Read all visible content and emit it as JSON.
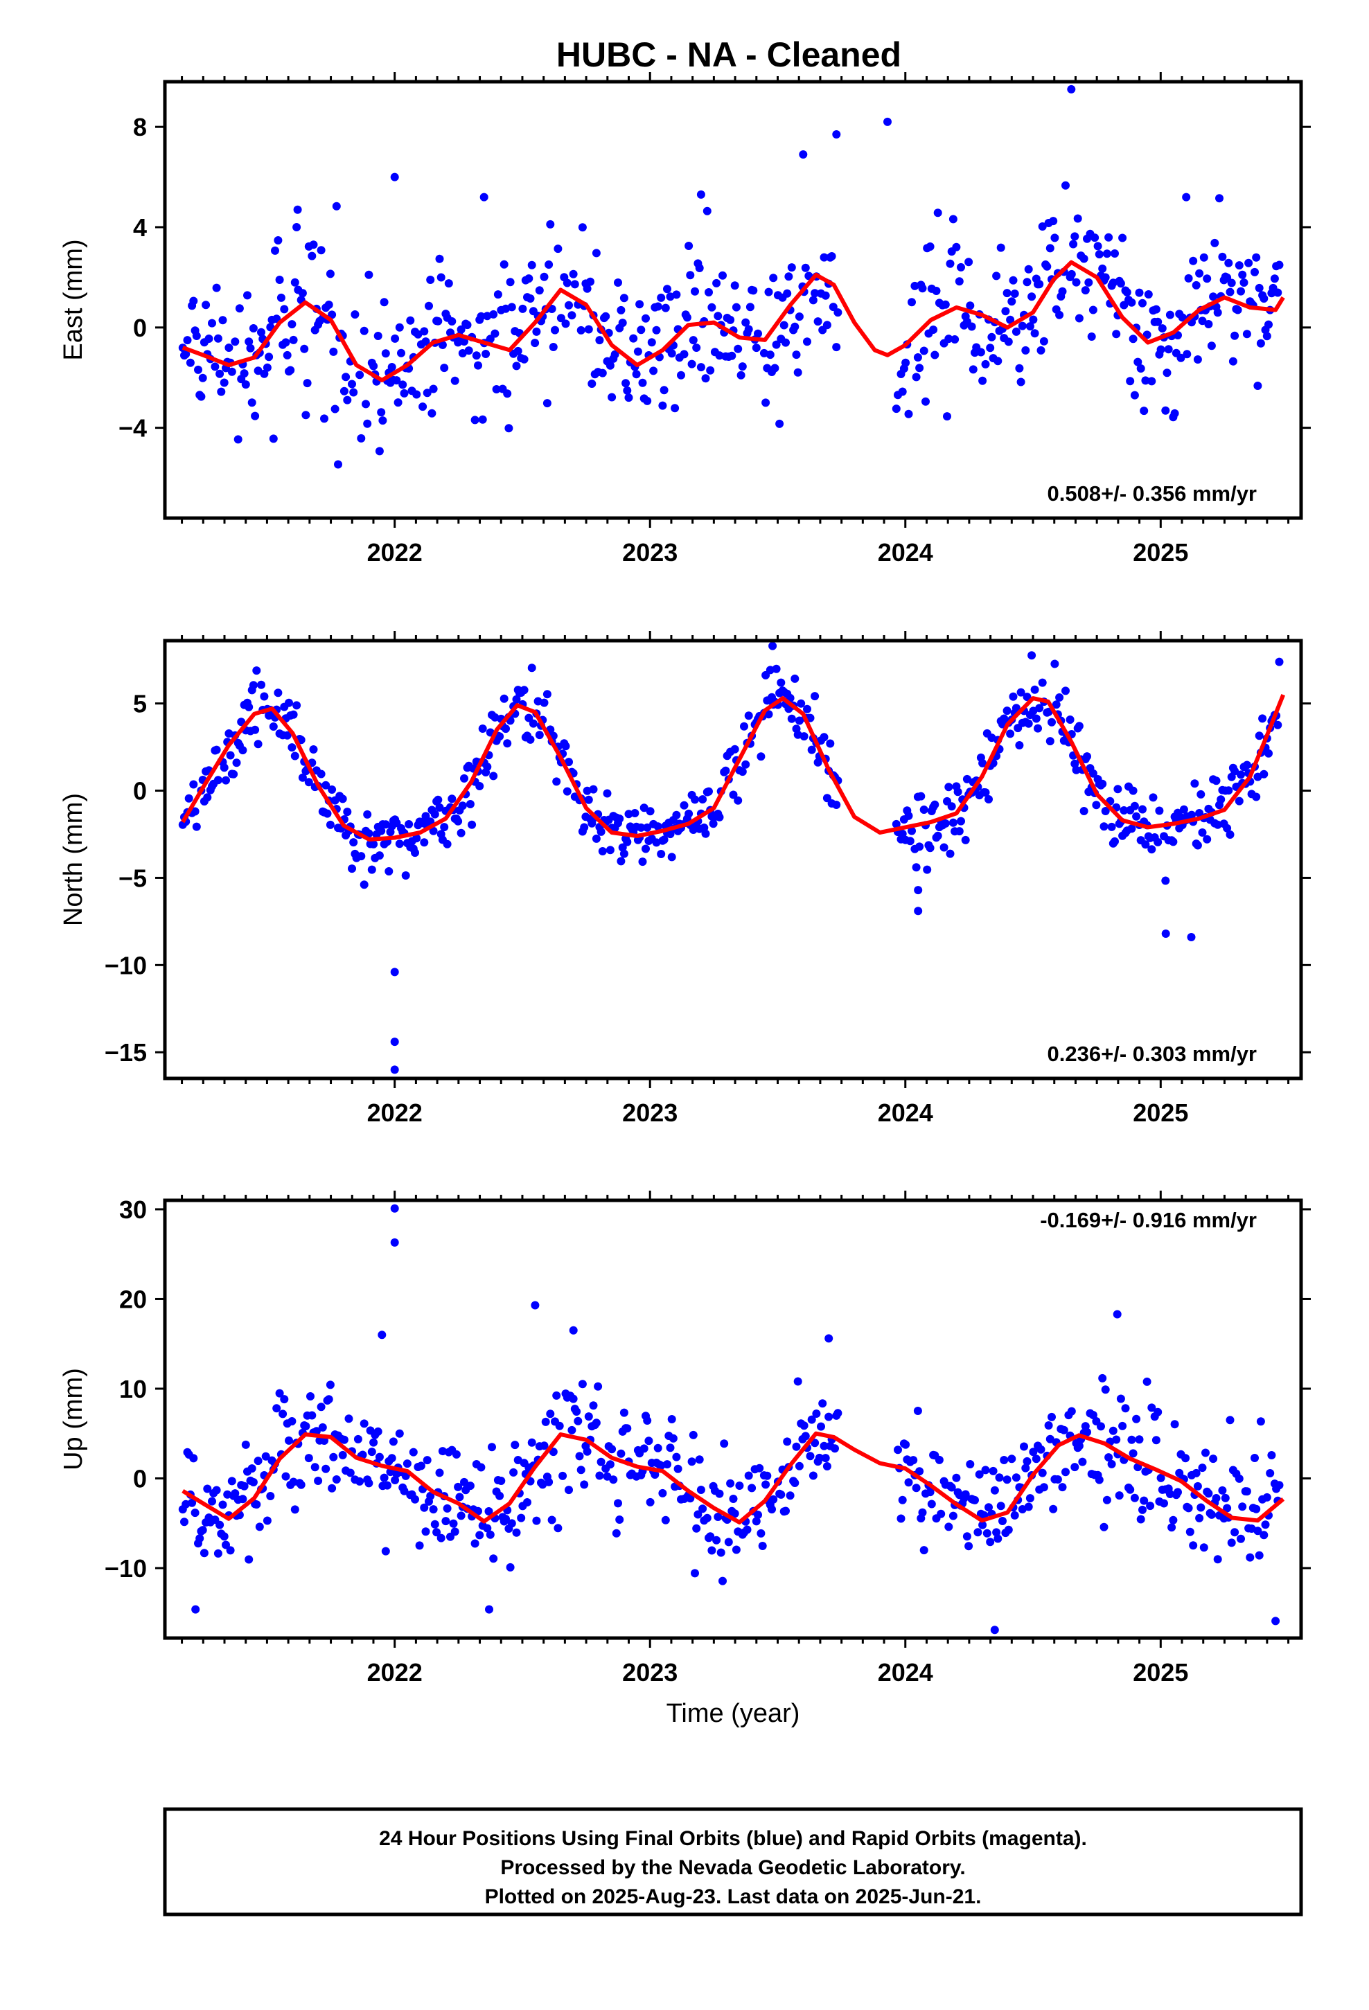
{
  "title": "HUBC  - NA - Cleaned",
  "colors": {
    "points": "#0000ff",
    "fit": "#ff0000",
    "frame": "#000000"
  },
  "xaxis_label": "Time (year)",
  "footer": {
    "line1": "24 Hour Positions Using Final Orbits (blue) and Rapid Orbits (magenta).",
    "line2": "Processed by the Nevada Geodetic Laboratory.",
    "line3": "Plotted on 2025-Aug-23. Last data on 2025-Jun-21."
  },
  "chart_data": [
    {
      "type": "scatter",
      "component": "east",
      "ylabel": "East (mm)",
      "rate_text": "0.508+/- 0.356 mm/yr",
      "xlim": [
        2021.1,
        2025.55
      ],
      "ylim": [
        -7.6,
        9.8
      ],
      "x_ticks": [
        2022,
        2023,
        2024,
        2025
      ],
      "x_tick_labels": [
        "2022",
        "2023",
        "2024",
        "2025"
      ],
      "y_ticks": [
        8,
        4,
        0,
        -4
      ],
      "y_tick_labels": [
        "8",
        "4",
        "0",
        "−4"
      ],
      "seasonal_model": {
        "offset": -0.4,
        "amp1": 1.3,
        "phase1": 0.62,
        "amp2": 0.4,
        "phase2": 0.15,
        "noise_sd": 1.5
      },
      "fit_points": [
        [
          2021.17,
          -0.8
        ],
        [
          2021.25,
          -1.1
        ],
        [
          2021.35,
          -1.5
        ],
        [
          2021.45,
          -1.2
        ],
        [
          2021.55,
          0.2
        ],
        [
          2021.65,
          1.0
        ],
        [
          2021.75,
          0.3
        ],
        [
          2021.85,
          -1.5
        ],
        [
          2021.95,
          -2.1
        ],
        [
          2022.05,
          -1.5
        ],
        [
          2022.15,
          -0.6
        ],
        [
          2022.25,
          -0.3
        ],
        [
          2022.35,
          -0.6
        ],
        [
          2022.45,
          -0.9
        ],
        [
          2022.55,
          0.2
        ],
        [
          2022.65,
          1.5
        ],
        [
          2022.75,
          0.9
        ],
        [
          2022.85,
          -0.7
        ],
        [
          2022.95,
          -1.5
        ],
        [
          2023.05,
          -0.9
        ],
        [
          2023.15,
          0.1
        ],
        [
          2023.25,
          0.2
        ],
        [
          2023.35,
          -0.4
        ],
        [
          2023.45,
          -0.5
        ],
        [
          2023.55,
          0.9
        ],
        [
          2023.65,
          2.1
        ],
        [
          2023.72,
          1.7
        ],
        [
          2023.8,
          0.2
        ],
        [
          2023.88,
          -0.9
        ],
        [
          2023.93,
          -1.1
        ],
        [
          2024.0,
          -0.7
        ],
        [
          2024.1,
          0.3
        ],
        [
          2024.2,
          0.8
        ],
        [
          2024.3,
          0.5
        ],
        [
          2024.4,
          0.0
        ],
        [
          2024.5,
          0.6
        ],
        [
          2024.58,
          1.9
        ],
        [
          2024.65,
          2.6
        ],
        [
          2024.75,
          2.0
        ],
        [
          2024.85,
          0.4
        ],
        [
          2024.95,
          -0.6
        ],
        [
          2025.05,
          -0.2
        ],
        [
          2025.15,
          0.7
        ],
        [
          2025.25,
          1.2
        ],
        [
          2025.35,
          0.8
        ],
        [
          2025.45,
          0.7
        ],
        [
          2025.48,
          1.2
        ]
      ],
      "outliers": [
        [
          2024.65,
          9.5
        ],
        [
          2023.93,
          8.2
        ],
        [
          2023.73,
          7.7
        ],
        [
          2023.6,
          6.9
        ],
        [
          2022.0,
          6.0
        ],
        [
          2022.35,
          5.2
        ],
        [
          2023.2,
          5.3
        ],
        [
          2025.1,
          5.2
        ],
        [
          2021.62,
          4.7
        ]
      ]
    },
    {
      "type": "scatter",
      "component": "north",
      "ylabel": "North (mm)",
      "rate_text": "0.236+/- 0.303 mm/yr",
      "xlim": [
        2021.1,
        2025.55
      ],
      "ylim": [
        -16.5,
        8.6
      ],
      "x_ticks": [
        2022,
        2023,
        2024,
        2025
      ],
      "x_tick_labels": [
        "2022",
        "2023",
        "2024",
        "2025"
      ],
      "y_ticks": [
        5,
        0,
        -5,
        -10,
        -15
      ],
      "y_tick_labels": [
        "5",
        "0",
        "−5",
        "−10",
        "−15"
      ],
      "seasonal_model": {
        "offset": 1.3,
        "amp1": 3.6,
        "phase1": 0.5,
        "amp2": 0.9,
        "phase2": 0.0,
        "noise_sd": 1.0
      },
      "fit_points": [
        [
          2021.17,
          -1.8
        ],
        [
          2021.25,
          0.2
        ],
        [
          2021.35,
          2.6
        ],
        [
          2021.45,
          4.4
        ],
        [
          2021.52,
          4.7
        ],
        [
          2021.6,
          3.3
        ],
        [
          2021.7,
          0.3
        ],
        [
          2021.8,
          -2.0
        ],
        [
          2021.9,
          -2.8
        ],
        [
          2022.0,
          -2.7
        ],
        [
          2022.1,
          -2.4
        ],
        [
          2022.2,
          -1.6
        ],
        [
          2022.3,
          0.5
        ],
        [
          2022.4,
          3.5
        ],
        [
          2022.48,
          4.9
        ],
        [
          2022.55,
          4.5
        ],
        [
          2022.65,
          1.9
        ],
        [
          2022.75,
          -1.0
        ],
        [
          2022.85,
          -2.4
        ],
        [
          2022.95,
          -2.6
        ],
        [
          2023.05,
          -2.3
        ],
        [
          2023.15,
          -1.9
        ],
        [
          2023.25,
          -1.0
        ],
        [
          2023.35,
          1.8
        ],
        [
          2023.45,
          4.6
        ],
        [
          2023.52,
          5.3
        ],
        [
          2023.6,
          4.4
        ],
        [
          2023.7,
          1.2
        ],
        [
          2023.8,
          -1.5
        ],
        [
          2023.9,
          -2.4
        ],
        [
          2024.0,
          -2.1
        ],
        [
          2024.1,
          -1.8
        ],
        [
          2024.2,
          -1.3
        ],
        [
          2024.3,
          0.8
        ],
        [
          2024.4,
          3.8
        ],
        [
          2024.5,
          5.3
        ],
        [
          2024.56,
          5.1
        ],
        [
          2024.65,
          2.8
        ],
        [
          2024.75,
          -0.2
        ],
        [
          2024.85,
          -1.7
        ],
        [
          2024.95,
          -2.1
        ],
        [
          2025.05,
          -1.9
        ],
        [
          2025.15,
          -1.6
        ],
        [
          2025.25,
          -1.1
        ],
        [
          2025.35,
          0.8
        ],
        [
          2025.42,
          3.3
        ],
        [
          2025.48,
          5.5
        ]
      ],
      "outliers": [
        [
          2022.0,
          -10.4
        ],
        [
          2022.0,
          -14.4
        ],
        [
          2022.0,
          -16.0
        ],
        [
          2025.02,
          -8.2
        ],
        [
          2025.12,
          -8.4
        ],
        [
          2024.05,
          -6.9
        ],
        [
          2024.05,
          -5.7
        ],
        [
          2023.48,
          8.3
        ]
      ]
    },
    {
      "type": "scatter",
      "component": "up",
      "ylabel": "Up (mm)",
      "rate_text": "-0.169+/- 0.916 mm/yr",
      "xlim": [
        2021.1,
        2025.55
      ],
      "ylim": [
        -17.8,
        31.0
      ],
      "x_ticks": [
        2022,
        2023,
        2024,
        2025
      ],
      "x_tick_labels": [
        "2022",
        "2023",
        "2024",
        "2025"
      ],
      "y_ticks": [
        30,
        20,
        10,
        0,
        -10
      ],
      "y_tick_labels": [
        "30",
        "20",
        "10",
        "0",
        "−10"
      ],
      "seasonal_model": {
        "offset": 0.3,
        "amp1": 4.8,
        "phase1": 0.7,
        "amp2": 0.8,
        "phase2": 0.25,
        "noise_sd": 3.3
      },
      "fit_points": [
        [
          2021.17,
          -1.4
        ],
        [
          2021.25,
          -2.8
        ],
        [
          2021.35,
          -4.5
        ],
        [
          2021.45,
          -2.2
        ],
        [
          2021.55,
          2.2
        ],
        [
          2021.65,
          4.9
        ],
        [
          2021.75,
          4.6
        ],
        [
          2021.85,
          2.3
        ],
        [
          2021.95,
          1.4
        ],
        [
          2022.05,
          0.8
        ],
        [
          2022.15,
          -1.5
        ],
        [
          2022.25,
          -2.8
        ],
        [
          2022.35,
          -4.8
        ],
        [
          2022.45,
          -2.8
        ],
        [
          2022.55,
          1.3
        ],
        [
          2022.65,
          4.9
        ],
        [
          2022.75,
          4.3
        ],
        [
          2022.85,
          2.3
        ],
        [
          2022.95,
          1.3
        ],
        [
          2023.05,
          0.8
        ],
        [
          2023.15,
          -1.4
        ],
        [
          2023.25,
          -3.3
        ],
        [
          2023.35,
          -4.9
        ],
        [
          2023.45,
          -2.5
        ],
        [
          2023.55,
          1.5
        ],
        [
          2023.65,
          5.0
        ],
        [
          2023.72,
          4.6
        ],
        [
          2023.8,
          3.2
        ],
        [
          2023.9,
          1.7
        ],
        [
          2024.0,
          1.1
        ],
        [
          2024.1,
          -0.8
        ],
        [
          2024.2,
          -2.9
        ],
        [
          2024.3,
          -4.7
        ],
        [
          2024.4,
          -3.8
        ],
        [
          2024.5,
          0.4
        ],
        [
          2024.6,
          3.7
        ],
        [
          2024.68,
          4.8
        ],
        [
          2024.78,
          3.9
        ],
        [
          2024.88,
          2.2
        ],
        [
          2024.98,
          1.0
        ],
        [
          2025.08,
          -0.3
        ],
        [
          2025.18,
          -2.5
        ],
        [
          2025.28,
          -4.4
        ],
        [
          2025.38,
          -4.7
        ],
        [
          2025.48,
          -2.3
        ]
      ],
      "outliers": [
        [
          2022.0,
          30.1
        ],
        [
          2022.0,
          26.3
        ],
        [
          2022.55,
          19.3
        ],
        [
          2022.7,
          16.5
        ],
        [
          2021.95,
          16.0
        ],
        [
          2023.7,
          15.6
        ],
        [
          2024.83,
          18.3
        ],
        [
          2024.35,
          -16.9
        ],
        [
          2025.45,
          -15.9
        ],
        [
          2021.22,
          -14.6
        ],
        [
          2022.37,
          -14.6
        ]
      ]
    }
  ]
}
